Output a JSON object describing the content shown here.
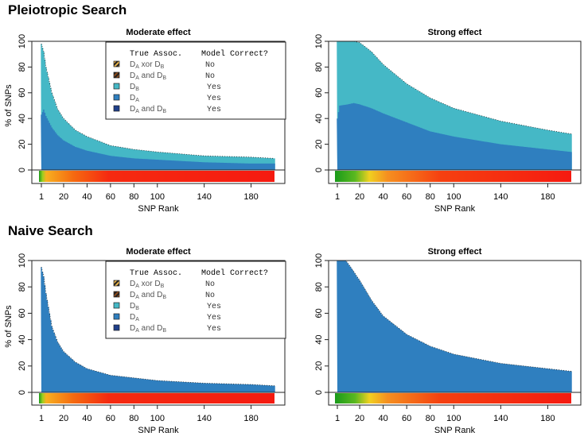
{
  "colors": {
    "DB": "#45b8c6",
    "DA": "#2f7fbf",
    "DAandDB_yes": "#1f3f8a",
    "xor_no": "#e8b34a",
    "and_no": "#8a4a1a"
  },
  "sections": [
    {
      "title": "Pleiotropic Search"
    },
    {
      "title": "Naive Search"
    }
  ],
  "legend": {
    "header_assoc": "True Assoc.",
    "header_correct": "Model Correct?",
    "items": [
      {
        "label": "DA xor DB",
        "a": "D",
        "asub": "A",
        "mid": " xor ",
        "b": "D",
        "bsub": "B",
        "correct": "No",
        "swatch": "hatch-light"
      },
      {
        "label": "DA and DB",
        "a": "D",
        "asub": "A",
        "mid": " and ",
        "b": "D",
        "bsub": "B",
        "correct": "No",
        "swatch": "hatch-dark"
      },
      {
        "label": "DB",
        "a": "D",
        "asub": "B",
        "mid": "",
        "b": "",
        "bsub": "",
        "correct": "Yes",
        "swatch": "DB"
      },
      {
        "label": "DA",
        "a": "D",
        "asub": "A",
        "mid": "",
        "b": "",
        "bsub": "",
        "correct": "Yes",
        "swatch": "DA"
      },
      {
        "label": "DA and DB",
        "a": "D",
        "asub": "A",
        "mid": " and ",
        "b": "D",
        "bsub": "B",
        "correct": "Yes",
        "swatch": "DAandDB_yes"
      }
    ]
  },
  "chart_data": [
    {
      "type": "area",
      "section": 0,
      "title": "Moderate effect",
      "xlabel": "SNP Rank",
      "ylabel": "% of SNPs",
      "xlim": [
        1,
        200
      ],
      "ylim": [
        0,
        100
      ],
      "xticks": [
        1,
        20,
        40,
        60,
        80,
        100,
        140,
        180
      ],
      "yticks": [
        0,
        20,
        40,
        60,
        80,
        100
      ],
      "legend": true,
      "x": [
        1,
        3,
        5,
        10,
        15,
        20,
        30,
        40,
        60,
        80,
        100,
        140,
        180,
        200
      ],
      "series": [
        {
          "name": "DA",
          "values": [
            43,
            47,
            42,
            33,
            27,
            23,
            18,
            15,
            11,
            9,
            8,
            6,
            5,
            5
          ]
        },
        {
          "name": "total",
          "values": [
            98,
            92,
            80,
            60,
            47,
            40,
            31,
            26,
            19,
            16,
            14,
            11,
            10,
            9
          ]
        }
      ],
      "heat": [
        [
          1,
          "#1a9a1a"
        ],
        [
          4,
          "#9ad020"
        ],
        [
          7,
          "#f7b020"
        ],
        [
          30,
          "#f56a10"
        ],
        [
          60,
          "#f52a10"
        ],
        [
          200,
          "#f51a10"
        ]
      ]
    },
    {
      "type": "area",
      "section": 0,
      "title": "Strong effect",
      "xlabel": "SNP Rank",
      "ylabel": "",
      "xlim": [
        1,
        200
      ],
      "ylim": [
        0,
        100
      ],
      "xticks": [
        1,
        20,
        40,
        60,
        80,
        100,
        140,
        180
      ],
      "yticks": [
        0,
        20,
        40,
        60,
        80,
        100
      ],
      "legend": false,
      "x": [
        1,
        3,
        10,
        15,
        20,
        30,
        40,
        60,
        80,
        100,
        140,
        180,
        200
      ],
      "series": [
        {
          "name": "DA",
          "values": [
            40,
            50,
            51,
            52,
            51,
            48,
            44,
            37,
            30,
            26,
            20,
            16,
            14
          ]
        },
        {
          "name": "total",
          "values": [
            100,
            100,
            100,
            100,
            99,
            92,
            82,
            67,
            56,
            48,
            38,
            31,
            28
          ]
        }
      ],
      "heat": [
        [
          1,
          "#1a9a1a"
        ],
        [
          18,
          "#5ab820"
        ],
        [
          30,
          "#f0d020"
        ],
        [
          45,
          "#f59020"
        ],
        [
          90,
          "#f54010"
        ],
        [
          200,
          "#f51a10"
        ]
      ]
    },
    {
      "type": "area",
      "section": 1,
      "title": "Moderate effect",
      "xlabel": "SNP Rank",
      "ylabel": "% of SNPs",
      "xlim": [
        1,
        200
      ],
      "ylim": [
        0,
        100
      ],
      "xticks": [
        1,
        20,
        40,
        60,
        80,
        100,
        140,
        180
      ],
      "yticks": [
        0,
        20,
        40,
        60,
        80,
        100
      ],
      "legend": true,
      "x": [
        1,
        3,
        5,
        10,
        15,
        20,
        30,
        40,
        60,
        80,
        100,
        140,
        180,
        200
      ],
      "series": [
        {
          "name": "DA",
          "values": [
            95,
            88,
            75,
            50,
            38,
            31,
            23,
            18,
            13,
            11,
            9,
            7,
            6,
            5
          ]
        }
      ],
      "heat": [
        [
          1,
          "#1a9a1a"
        ],
        [
          4,
          "#9ad020"
        ],
        [
          7,
          "#f7b020"
        ],
        [
          30,
          "#f56a10"
        ],
        [
          60,
          "#f52a10"
        ],
        [
          200,
          "#f51a10"
        ]
      ]
    },
    {
      "type": "area",
      "section": 1,
      "title": "Strong effect",
      "xlabel": "SNP Rank",
      "ylabel": "",
      "xlim": [
        1,
        200
      ],
      "ylim": [
        0,
        100
      ],
      "xticks": [
        1,
        20,
        40,
        60,
        80,
        100,
        140,
        180
      ],
      "yticks": [
        0,
        20,
        40,
        60,
        80,
        100
      ],
      "legend": false,
      "x": [
        1,
        8,
        10,
        20,
        30,
        40,
        60,
        80,
        100,
        140,
        180,
        200
      ],
      "series": [
        {
          "name": "DA",
          "values": [
            100,
            100,
            98,
            85,
            70,
            58,
            44,
            35,
            29,
            22,
            18,
            16
          ]
        }
      ],
      "heat": [
        [
          1,
          "#1a9a1a"
        ],
        [
          18,
          "#5ab820"
        ],
        [
          30,
          "#f0d020"
        ],
        [
          45,
          "#f59020"
        ],
        [
          90,
          "#f54010"
        ],
        [
          200,
          "#f51a10"
        ]
      ]
    }
  ]
}
